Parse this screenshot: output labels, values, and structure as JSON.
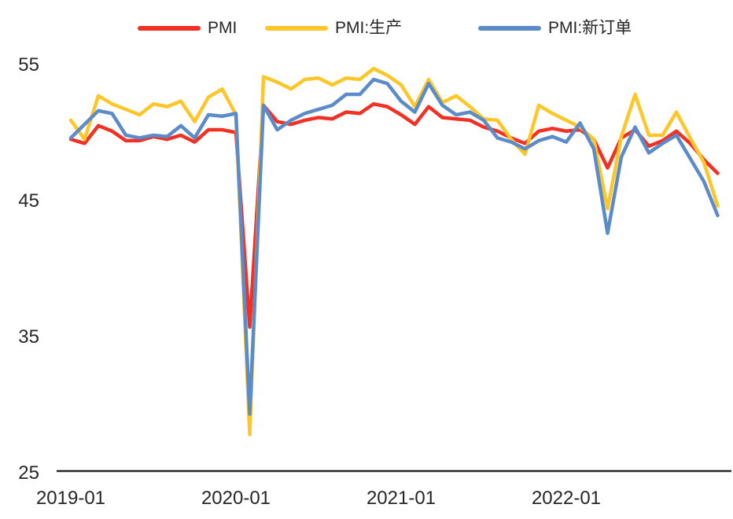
{
  "chart_data": {
    "type": "line",
    "title": "",
    "xlabel": "",
    "ylabel": "",
    "ylim": [
      25,
      55
    ],
    "y_ticks": [
      25,
      35,
      45,
      55
    ],
    "x_ticks": [
      "2019-01",
      "2020-01",
      "2021-01",
      "2022-01"
    ],
    "grid": false,
    "legend_position": "top",
    "axis_color": "#262626",
    "text_color": "#262626",
    "categories": [
      "2019-01",
      "2019-02",
      "2019-03",
      "2019-04",
      "2019-05",
      "2019-06",
      "2019-07",
      "2019-08",
      "2019-09",
      "2019-10",
      "2019-11",
      "2019-12",
      "2020-01",
      "2020-02",
      "2020-03",
      "2020-04",
      "2020-05",
      "2020-06",
      "2020-07",
      "2020-08",
      "2020-09",
      "2020-10",
      "2020-11",
      "2020-12",
      "2021-01",
      "2021-02",
      "2021-03",
      "2021-04",
      "2021-05",
      "2021-06",
      "2021-07",
      "2021-08",
      "2021-09",
      "2021-10",
      "2021-11",
      "2021-12",
      "2022-01",
      "2022-02",
      "2022-03",
      "2022-04",
      "2022-05",
      "2022-06",
      "2022-07",
      "2022-08",
      "2022-09",
      "2022-10",
      "2022-11",
      "2022-12"
    ],
    "series": [
      {
        "name": "PMI",
        "color": "#F23023",
        "values": [
          49.5,
          49.2,
          50.5,
          50.1,
          49.4,
          49.4,
          49.7,
          49.5,
          49.8,
          49.3,
          50.2,
          50.2,
          50.0,
          35.7,
          52.0,
          50.8,
          50.6,
          50.9,
          51.1,
          51.0,
          51.5,
          51.4,
          52.1,
          51.9,
          51.3,
          50.6,
          51.9,
          51.1,
          51.0,
          50.9,
          50.4,
          50.1,
          49.6,
          49.2,
          50.1,
          50.3,
          50.1,
          50.2,
          49.5,
          47.4,
          49.6,
          50.2,
          49.0,
          49.4,
          50.1,
          49.2,
          48.0,
          47.0
        ]
      },
      {
        "name": "PMI:生产",
        "color": "#FFC629",
        "values": [
          50.9,
          49.5,
          52.7,
          52.1,
          51.7,
          51.3,
          52.1,
          51.9,
          52.3,
          50.8,
          52.6,
          53.2,
          51.3,
          27.8,
          54.1,
          53.7,
          53.2,
          53.9,
          54.0,
          53.5,
          54.0,
          53.9,
          54.7,
          54.2,
          53.5,
          51.9,
          53.9,
          52.2,
          52.7,
          51.9,
          51.0,
          50.9,
          49.5,
          48.4,
          52.0,
          51.4,
          50.9,
          50.4,
          49.5,
          44.4,
          49.7,
          52.8,
          49.8,
          49.8,
          51.5,
          49.6,
          47.8,
          44.6
        ]
      },
      {
        "name": "PMI:新订单",
        "color": "#5B8BC9",
        "values": [
          49.6,
          50.6,
          51.6,
          51.4,
          49.8,
          49.6,
          49.8,
          49.7,
          50.5,
          49.6,
          51.3,
          51.2,
          51.4,
          29.3,
          52.0,
          50.2,
          50.9,
          51.4,
          51.7,
          52.0,
          52.8,
          52.8,
          53.9,
          53.6,
          52.3,
          51.5,
          53.6,
          52.0,
          51.3,
          51.5,
          50.9,
          49.6,
          49.3,
          48.8,
          49.4,
          49.7,
          49.3,
          50.7,
          48.8,
          42.6,
          48.2,
          50.4,
          48.5,
          49.2,
          49.8,
          48.1,
          46.4,
          43.9
        ]
      }
    ]
  }
}
